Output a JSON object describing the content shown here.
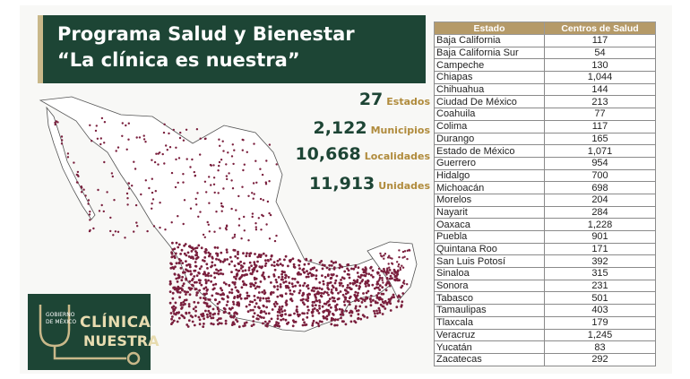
{
  "title": {
    "line1": "Programa Salud y Bienestar",
    "line2": "“La clínica es nuestra”"
  },
  "stats": [
    {
      "value": "27",
      "label": "Estados"
    },
    {
      "value": "2,122",
      "label": "Municipios"
    },
    {
      "value": "10,668",
      "label": "Localidades"
    },
    {
      "value": "11,913",
      "label": "Unidades"
    }
  ],
  "logo": {
    "gov": "GOBIERNO DE MÉXICO",
    "line1": "CLÍNICA",
    "line2": "NUESTRA"
  },
  "table": {
    "headers": [
      "Estado",
      "Centros de Salud"
    ],
    "rows": [
      [
        "Baja California",
        "117"
      ],
      [
        "Baja California Sur",
        "54"
      ],
      [
        "Campeche",
        "130"
      ],
      [
        "Chiapas",
        "1,044"
      ],
      [
        "Chihuahua",
        "144"
      ],
      [
        "Ciudad De México",
        "213"
      ],
      [
        "Coahuila",
        "77"
      ],
      [
        "Colima",
        "117"
      ],
      [
        "Durango",
        "165"
      ],
      [
        "Estado de México",
        "1,071"
      ],
      [
        "Guerrero",
        "954"
      ],
      [
        "Hidalgo",
        "700"
      ],
      [
        "Michoacán",
        "698"
      ],
      [
        "Morelos",
        "204"
      ],
      [
        "Nayarit",
        "284"
      ],
      [
        "Oaxaca",
        "1,228"
      ],
      [
        "Puebla",
        "901"
      ],
      [
        "Quintana Roo",
        "171"
      ],
      [
        "San Luis Potosí",
        "392"
      ],
      [
        "Sinaloa",
        "315"
      ],
      [
        "Sonora",
        "231"
      ],
      [
        "Tabasco",
        "501"
      ],
      [
        "Tamaulipas",
        "403"
      ],
      [
        "Tlaxcala",
        "179"
      ],
      [
        "Veracruz",
        "1,245"
      ],
      [
        "Yucatán",
        "83"
      ],
      [
        "Zacatecas",
        "292"
      ]
    ]
  },
  "colors": {
    "brand_green": "#1d4535",
    "gold": "#b08b3c",
    "dot": "#7a1f3d"
  }
}
